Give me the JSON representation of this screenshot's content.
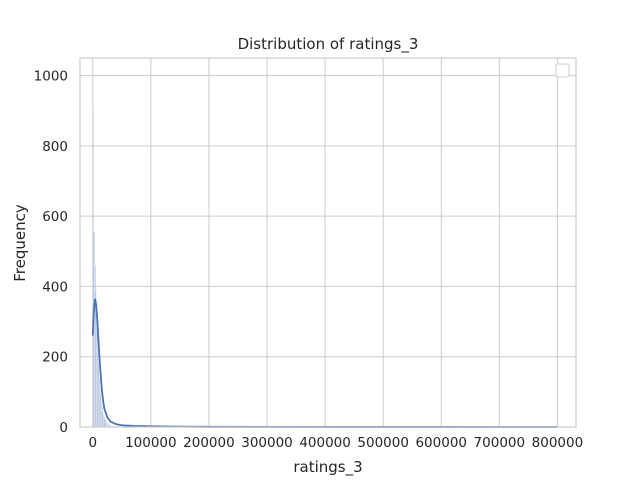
{
  "chart_data": {
    "type": "histogram",
    "title": "Distribution of ratings_3",
    "xlabel": "ratings_3",
    "ylabel": "Frequency",
    "xlim": [
      -22000,
      832000
    ],
    "ylim": [
      0,
      1050
    ],
    "xticks": [
      0,
      100000,
      200000,
      300000,
      400000,
      500000,
      600000,
      700000,
      800000
    ],
    "yticks": [
      0,
      200,
      400,
      600,
      800,
      1000
    ],
    "grid": true,
    "legend": "top-right (empty)",
    "bar_color": "#4c72b0",
    "kde_color": "#4c72b0",
    "bins": [
      {
        "x": 0,
        "height": 910
      },
      {
        "x": 1200,
        "height": 555
      },
      {
        "x": 2400,
        "height": 555
      },
      {
        "x": 3600,
        "height": 460
      },
      {
        "x": 4800,
        "height": 390
      },
      {
        "x": 6000,
        "height": 320
      },
      {
        "x": 7200,
        "height": 265
      },
      {
        "x": 8400,
        "height": 210
      },
      {
        "x": 9600,
        "height": 175
      },
      {
        "x": 10800,
        "height": 140
      },
      {
        "x": 12000,
        "height": 110
      },
      {
        "x": 13200,
        "height": 90
      },
      {
        "x": 14400,
        "height": 70
      },
      {
        "x": 15600,
        "height": 55
      },
      {
        "x": 16800,
        "height": 45
      },
      {
        "x": 18000,
        "height": 35
      },
      {
        "x": 19200,
        "height": 30
      },
      {
        "x": 20400,
        "height": 24
      },
      {
        "x": 21600,
        "height": 20
      },
      {
        "x": 22800,
        "height": 16
      },
      {
        "x": 24000,
        "height": 13
      },
      {
        "x": 26000,
        "height": 10
      },
      {
        "x": 28000,
        "height": 8
      },
      {
        "x": 30000,
        "height": 6
      },
      {
        "x": 33000,
        "height": 5
      },
      {
        "x": 36000,
        "height": 4
      },
      {
        "x": 40000,
        "height": 3
      },
      {
        "x": 45000,
        "height": 2
      },
      {
        "x": 52000,
        "height": 2
      },
      {
        "x": 60000,
        "height": 1
      },
      {
        "x": 75000,
        "height": 1
      },
      {
        "x": 100000,
        "height": 1
      }
    ],
    "bin_width": 1200,
    "kde": {
      "x": [
        0,
        2000,
        4000,
        6000,
        8000,
        10000,
        12000,
        14000,
        16000,
        18000,
        20000,
        25000,
        30000,
        40000,
        50000,
        70000,
        100000,
        150000,
        200000,
        300000,
        400000,
        500000,
        600000,
        700000,
        800000
      ],
      "y": [
        260,
        335,
        365,
        345,
        300,
        240,
        185,
        140,
        100,
        72,
        52,
        28,
        16,
        8,
        5,
        3,
        2,
        1,
        0.5,
        0.3,
        0.2,
        0.1,
        0.1,
        0.05,
        0.05
      ]
    }
  }
}
